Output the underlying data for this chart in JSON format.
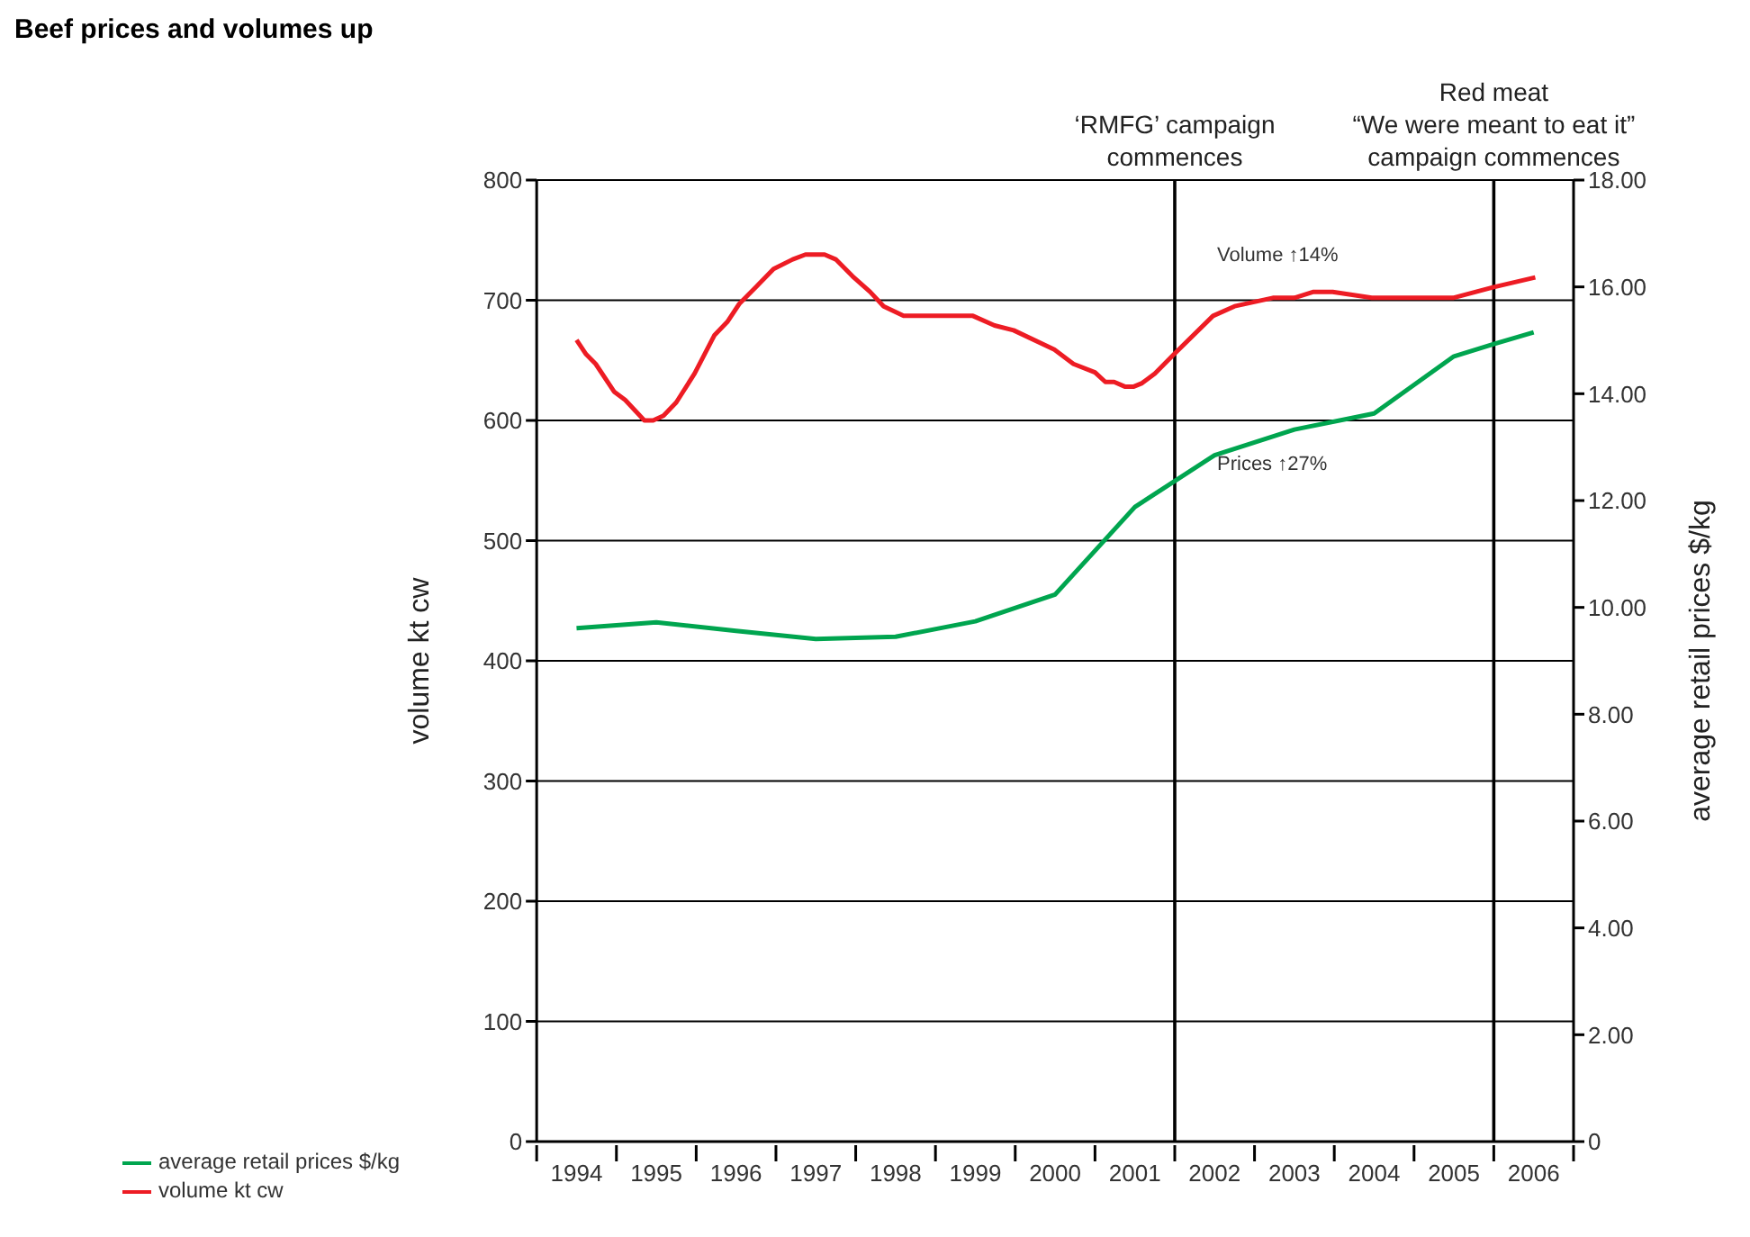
{
  "chart_data": {
    "type": "line",
    "title": "Beef prices and volumes up",
    "ylabel": "volume kt cw",
    "y2label": "average retail prices $/kg",
    "xlim": [
      1993.5,
      2006.5
    ],
    "xticks": [
      {
        "value": 1993.5,
        "label": null
      },
      {
        "value": 1994,
        "label": "1994"
      },
      {
        "value": 1994.5,
        "label": null
      },
      {
        "value": 1995,
        "label": "1995"
      },
      {
        "value": 1995.5,
        "label": null
      },
      {
        "value": 1996,
        "label": "1996"
      },
      {
        "value": 1996.5,
        "label": null
      },
      {
        "value": 1997,
        "label": "1997"
      },
      {
        "value": 1997.5,
        "label": null
      },
      {
        "value": 1998,
        "label": "1998"
      },
      {
        "value": 1998.5,
        "label": null
      },
      {
        "value": 1999,
        "label": "1999"
      },
      {
        "value": 1999.5,
        "label": null
      },
      {
        "value": 2000,
        "label": "2000"
      },
      {
        "value": 2000.5,
        "label": null
      },
      {
        "value": 2001,
        "label": "2001"
      },
      {
        "value": 2001.5,
        "label": null
      },
      {
        "value": 2002,
        "label": "2002"
      },
      {
        "value": 2002.5,
        "label": null
      },
      {
        "value": 2003,
        "label": "2003"
      },
      {
        "value": 2003.5,
        "label": null
      },
      {
        "value": 2004,
        "label": "2004"
      },
      {
        "value": 2004.5,
        "label": null
      },
      {
        "value": 2005,
        "label": "2005"
      },
      {
        "value": 2005.5,
        "label": null
      },
      {
        "value": 2006,
        "label": "2006"
      },
      {
        "value": 2006.5,
        "label": null
      }
    ],
    "ylim": [
      0,
      800
    ],
    "yticks": [
      0,
      100,
      200,
      300,
      400,
      500,
      600,
      700,
      800
    ],
    "y2lim": [
      0,
      18
    ],
    "y2ticks": [
      0,
      {
        "value": 2,
        "label": "2.00"
      },
      {
        "value": 4,
        "label": "4.00"
      },
      {
        "value": 6,
        "label": "6.00"
      },
      {
        "value": 8,
        "label": "8.00"
      },
      {
        "value": 10,
        "label": "10.00"
      },
      {
        "value": 12,
        "label": "12.00"
      },
      {
        "value": 14,
        "label": "14.00"
      },
      {
        "value": 16,
        "label": "16.00"
      },
      {
        "value": 18,
        "label": "18.00"
      }
    ],
    "grid": "y",
    "legend": "bottom left",
    "marker": "none",
    "line_style": "solid",
    "series": [
      {
        "name": "volume kt cw",
        "color": "#ed1c24",
        "x": [
          1994.0,
          1994.12,
          1994.24,
          1994.47,
          1994.61,
          1994.85,
          1994.96,
          1995.09,
          1995.25,
          1995.48,
          1995.73,
          1995.89,
          1996.04,
          1996.25,
          1996.47,
          1996.71,
          1996.87,
          1997.11,
          1997.25,
          1997.46,
          1997.68,
          1997.85,
          1998.1,
          1998.97,
          1999.24,
          1999.48,
          1999.99,
          2000.23,
          2000.5,
          2000.63,
          2000.74,
          2000.88,
          2000.98,
          2001.09,
          2001.25,
          2001.49,
          2001.98,
          2002.25,
          2002.73,
          2003.0,
          2003.24,
          2003.48,
          2003.97,
          2004.99,
          2005.5,
          2006.02
        ],
        "values": [
          667,
          655,
          647,
          624,
          617,
          600,
          600,
          604,
          615,
          639,
          671,
          682,
          697,
          711,
          726,
          734,
          738,
          738,
          734,
          720,
          707,
          695,
          687,
          687,
          679,
          675,
          659,
          647,
          640,
          632,
          632,
          628,
          628,
          631,
          639,
          655,
          687,
          695,
          702,
          702,
          707,
          707,
          702,
          702,
          711,
          719
        ]
      },
      {
        "name": "average retail prices $/kg",
        "color": "#00a54f",
        "axis": "y2",
        "x": [
          1994,
          1995,
          1996,
          1997,
          1998,
          1999,
          2000,
          2001,
          2002,
          2003,
          2004,
          2005,
          2005.5,
          2006
        ],
        "values": [
          9.61,
          9.72,
          9.56,
          9.41,
          9.45,
          9.74,
          10.24,
          11.88,
          12.85,
          13.33,
          13.63,
          14.7,
          14.93,
          15.15
        ]
      }
    ],
    "ref_lines": [
      {
        "axis": "x",
        "value": 2001.5,
        "label": "‘RMFG’ campaign\ncommences",
        "color": "#000000"
      },
      {
        "axis": "x",
        "value": 2005.5,
        "label": "Red meat\n“We were meant to eat it”\ncampaign commences",
        "color": "#000000"
      }
    ],
    "annotations": [
      "Volume ↑14%",
      "Prices ↑27%"
    ]
  }
}
